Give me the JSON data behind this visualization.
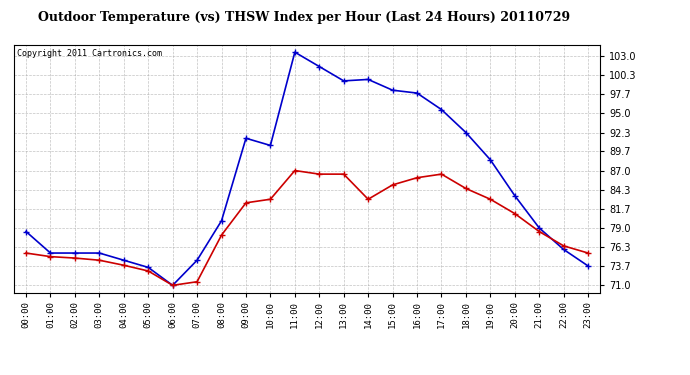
{
  "title": "Outdoor Temperature (vs) THSW Index per Hour (Last 24 Hours) 20110729",
  "copyright": "Copyright 2011 Cartronics.com",
  "hours": [
    "00:00",
    "01:00",
    "02:00",
    "03:00",
    "04:00",
    "05:00",
    "06:00",
    "07:00",
    "08:00",
    "09:00",
    "10:00",
    "11:00",
    "12:00",
    "13:00",
    "14:00",
    "15:00",
    "16:00",
    "17:00",
    "18:00",
    "19:00",
    "20:00",
    "21:00",
    "22:00",
    "23:00"
  ],
  "thsw": [
    78.5,
    75.5,
    75.5,
    75.5,
    74.5,
    73.5,
    71.0,
    74.5,
    80.0,
    91.5,
    90.5,
    103.5,
    101.5,
    99.5,
    99.7,
    98.2,
    97.8,
    95.5,
    92.3,
    88.5,
    83.5,
    79.0,
    76.0,
    73.7
  ],
  "temp": [
    75.5,
    75.0,
    74.8,
    74.5,
    73.8,
    73.0,
    71.0,
    71.5,
    78.0,
    82.5,
    83.0,
    87.0,
    86.5,
    86.5,
    83.0,
    85.0,
    86.0,
    86.5,
    84.5,
    83.0,
    81.0,
    78.5,
    76.5,
    75.5
  ],
  "thsw_color": "#0000cc",
  "temp_color": "#cc0000",
  "bg_color": "#ffffff",
  "grid_color": "#aaaaaa",
  "yticks": [
    71.0,
    73.7,
    76.3,
    79.0,
    81.7,
    84.3,
    87.0,
    89.7,
    92.3,
    95.0,
    97.7,
    100.3,
    103.0
  ],
  "ylim": [
    70.0,
    104.5
  ],
  "title_fontsize": 9,
  "copyright_fontsize": 6,
  "marker": "+",
  "marker_size": 4,
  "linewidth": 1.2
}
